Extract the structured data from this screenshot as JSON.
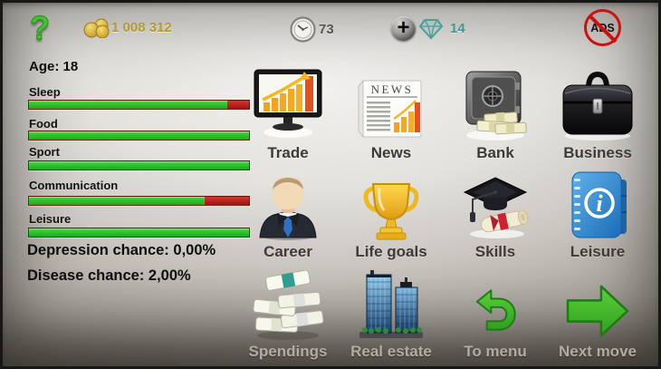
{
  "topbar": {
    "help_symbol": "?",
    "money_value": "1 008 312",
    "time_value": "73",
    "plus_symbol": "+",
    "gems_value": "14",
    "no_ads_text": "ADS"
  },
  "stats": {
    "age": "Age: 18",
    "bars": [
      {
        "label": "Sleep",
        "green_pct": 90
      },
      {
        "label": "Food",
        "green_pct": 100
      },
      {
        "label": "Sport",
        "green_pct": 100
      },
      {
        "label": "Communication",
        "green_pct": 80
      },
      {
        "label": "Leisure",
        "green_pct": 100
      }
    ],
    "depression_line": "Depression chance: 0,00%",
    "disease_line": "Disease chance: 2,00%"
  },
  "menu": {
    "items": [
      {
        "label": "Trade",
        "icon": "trade-monitor-icon"
      },
      {
        "label": "News",
        "icon": "news-newspaper-icon",
        "icon_text": "NEWS"
      },
      {
        "label": "Bank",
        "icon": "bank-safe-icon"
      },
      {
        "label": "Business",
        "icon": "business-briefcase-icon"
      },
      {
        "label": "Career",
        "icon": "career-person-icon"
      },
      {
        "label": "Life goals",
        "icon": "life-goals-trophy-icon"
      },
      {
        "label": "Skills",
        "icon": "skills-graduation-icon"
      },
      {
        "label": "Leisure",
        "icon": "leisure-notebook-icon",
        "icon_text": "i"
      },
      {
        "label": "Spendings",
        "icon": "spendings-money-icon"
      },
      {
        "label": "Real estate",
        "icon": "real-estate-buildings-icon"
      },
      {
        "label": "To menu",
        "icon": "to-menu-arrow-icon"
      },
      {
        "label": "Next move",
        "icon": "next-move-arrow-icon"
      }
    ]
  },
  "colors": {
    "money_text": "#b29a30",
    "gems_text": "#47958d",
    "time_text": "#57544f",
    "bar_green": "#2fbe2a",
    "bar_red": "#c62820",
    "arrow_green": "#3cb224",
    "no_ads_red": "#cc1210",
    "help_green": "#44c531",
    "label_dark": "#3e3a35",
    "label_light": "#b3aca2"
  }
}
